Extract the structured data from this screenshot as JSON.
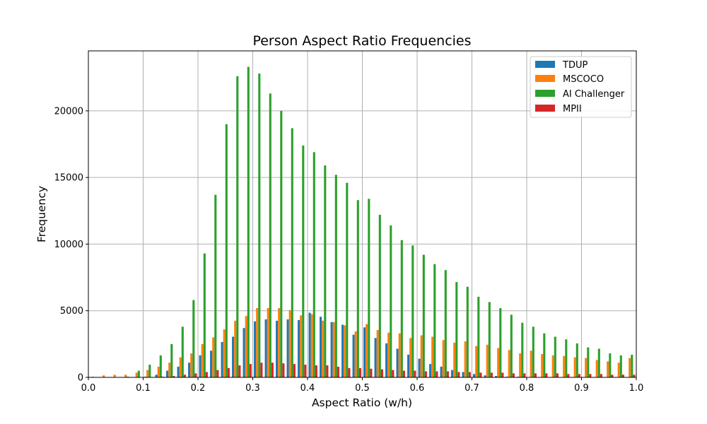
{
  "chart_data": {
    "type": "bar",
    "title": "Person Aspect Ratio Frequencies",
    "xlabel": "Aspect Ratio (w/h)",
    "ylabel": "Frequency",
    "xlim": [
      0.0,
      1.0
    ],
    "ylim": [
      0,
      24500
    ],
    "xticks": [
      0.0,
      0.1,
      0.2,
      0.3,
      0.4,
      0.5,
      0.6,
      0.7,
      0.8,
      0.9,
      1.0
    ],
    "xtick_labels": [
      "0.0",
      "0.1",
      "0.2",
      "0.3",
      "0.4",
      "0.5",
      "0.6",
      "0.7",
      "0.8",
      "0.9",
      "1.0"
    ],
    "yticks": [
      0,
      5000,
      10000,
      15000,
      20000
    ],
    "ytick_labels": [
      "0",
      "5000",
      "10000",
      "15000",
      "20000"
    ],
    "grid": true,
    "legend_position": "top-right",
    "x": [
      0.01,
      0.03,
      0.05,
      0.07,
      0.09,
      0.11,
      0.13,
      0.15,
      0.17,
      0.19,
      0.21,
      0.23,
      0.25,
      0.27,
      0.29,
      0.31,
      0.33,
      0.35,
      0.37,
      0.39,
      0.41,
      0.43,
      0.45,
      0.47,
      0.49,
      0.51,
      0.53,
      0.55,
      0.57,
      0.59,
      0.61,
      0.63,
      0.65,
      0.67,
      0.69,
      0.71,
      0.73,
      0.75,
      0.77,
      0.79,
      0.81,
      0.83,
      0.85,
      0.87,
      0.89,
      0.91,
      0.93,
      0.95,
      0.97,
      0.99
    ],
    "series": [
      {
        "name": "TDUP",
        "color": "#1f77b4",
        "values": [
          0,
          0,
          0,
          0,
          0,
          50,
          200,
          500,
          800,
          1100,
          1650,
          2000,
          2650,
          3050,
          3700,
          4200,
          4350,
          4250,
          4350,
          4300,
          4850,
          4550,
          4150,
          3950,
          3200,
          3750,
          2950,
          2550,
          2150,
          1700,
          1400,
          1000,
          800,
          550,
          400,
          250,
          150,
          100,
          50,
          50,
          0,
          0,
          0,
          0,
          0,
          0,
          0,
          0,
          0,
          0
        ]
      },
      {
        "name": "MSCOCO",
        "color": "#ff7f0e",
        "values": [
          50,
          150,
          200,
          200,
          350,
          550,
          800,
          1100,
          1500,
          1800,
          2500,
          3000,
          3600,
          4250,
          4600,
          5200,
          5200,
          5200,
          5050,
          4650,
          4750,
          4250,
          4150,
          3900,
          3450,
          4000,
          3550,
          3350,
          3300,
          2950,
          3150,
          3050,
          2800,
          2600,
          2700,
          2350,
          2450,
          2200,
          2050,
          1800,
          2000,
          1750,
          1650,
          1600,
          1500,
          1450,
          1300,
          1200,
          1100,
          1450
        ]
      },
      {
        "name": "AI Challenger",
        "color": "#2ca02c",
        "values": [
          0,
          0,
          0,
          50,
          500,
          950,
          1650,
          2500,
          3800,
          5800,
          9300,
          13700,
          19000,
          22600,
          23300,
          22800,
          21300,
          20000,
          18700,
          17400,
          16900,
          15900,
          15200,
          14600,
          13300,
          13400,
          12200,
          11400,
          10300,
          9900,
          9200,
          8500,
          8050,
          7150,
          6800,
          6050,
          5650,
          5200,
          4700,
          4100,
          3800,
          3300,
          3050,
          2850,
          2550,
          2250,
          2150,
          1800,
          1650,
          1700
        ]
      },
      {
        "name": "MPII",
        "color": "#d62728",
        "values": [
          0,
          0,
          0,
          0,
          0,
          0,
          50,
          100,
          200,
          300,
          400,
          550,
          700,
          900,
          1000,
          1100,
          1100,
          1050,
          1000,
          950,
          900,
          900,
          800,
          700,
          700,
          650,
          600,
          550,
          500,
          500,
          450,
          450,
          450,
          400,
          400,
          350,
          350,
          350,
          300,
          300,
          300,
          300,
          300,
          250,
          250,
          250,
          250,
          200,
          200,
          200
        ]
      }
    ]
  }
}
